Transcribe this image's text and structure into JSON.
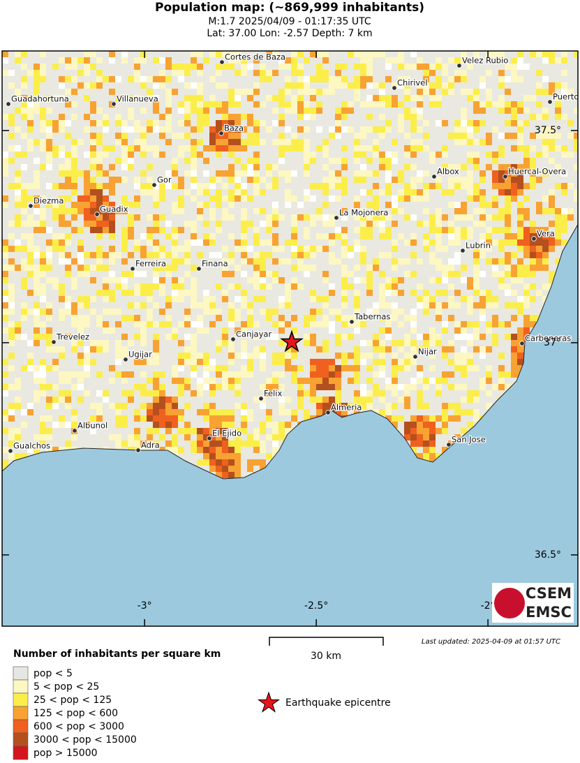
{
  "title": "Population map: (~869,999 inhabitants)",
  "subtitle": [
    "M:1.7 2025/04/09 - 01:17:35 UTC",
    "Lat: 37.00 Lon: -2.57 Depth: 7 km"
  ],
  "map": {
    "lonlim": [
      -3.415,
      -1.738
    ],
    "latlim": [
      36.332,
      37.6875
    ],
    "lon_ticks": [
      {
        "value": -3,
        "label": "-3°"
      },
      {
        "value": -2.5,
        "label": "-2.5°"
      },
      {
        "value": -2,
        "label": "-2°"
      }
    ],
    "lat_ticks": [
      {
        "value": 37.5,
        "label": "37.5°"
      },
      {
        "value": 37,
        "label": "37°"
      },
      {
        "value": 36.5,
        "label": "36.5°"
      }
    ],
    "cities": [
      "Cortes de Baza",
      "Velez Rubio",
      "Chirivel",
      "Guadahortuna",
      "Villanueva",
      "Puerto",
      "Baza",
      "Albox",
      "Huercal-Overa",
      "Gor",
      "Diezma",
      "Guadix",
      "La Mojonera",
      "Vera",
      "Lubrin",
      "Ferreira",
      "Finana",
      "Tabernas",
      "Canjayar",
      "Trevelez",
      "Carboneras",
      "Nijar",
      "Ugijar",
      "Felix",
      "Almeria",
      "Albunol",
      "El Ejido",
      "San Jose",
      "Gualchos",
      "Adra"
    ]
  },
  "scale_bar": "30 km",
  "last_updated": "Last updated: 2025-04-09 at 01:57 UTC",
  "legend": {
    "title": "Number of inhabitants per square km",
    "items": [
      {
        "label": "pop < 5",
        "color": "#e6e6e2"
      },
      {
        "label": "5 < pop < 25",
        "color": "#fdf7c2"
      },
      {
        "label": "25 < pop < 125",
        "color": "#fcee4a"
      },
      {
        "label": "125 < pop < 600",
        "color": "#f8a233"
      },
      {
        "label": "600 < pop < 3000",
        "color": "#f0601e"
      },
      {
        "label": "3000 < pop < 15000",
        "color": "#b4501e"
      },
      {
        "label": "pop > 15000",
        "color": "#d4161c"
      }
    ]
  },
  "epicentre_label": "Earthquake epicentre",
  "logo": [
    "CSEM",
    "EMSC"
  ]
}
